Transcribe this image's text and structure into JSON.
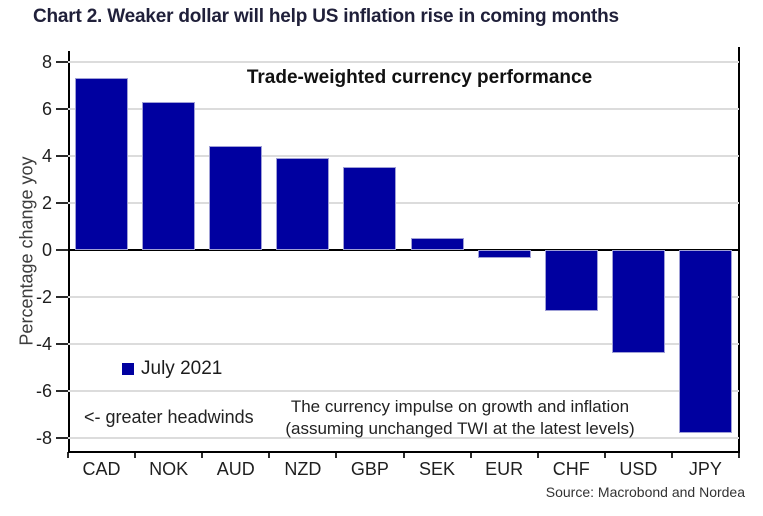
{
  "page": {
    "title": "Chart 2. Weaker dollar will help US inflation rise in coming months"
  },
  "source": "Source: Macrobond and Nordea",
  "chart_data": {
    "type": "bar",
    "title": "Trade-weighted currency performance",
    "categories": [
      "CAD",
      "NOK",
      "AUD",
      "NZD",
      "GBP",
      "SEK",
      "EUR",
      "CHF",
      "USD",
      "JPY"
    ],
    "values": [
      7.3,
      6.3,
      4.4,
      3.9,
      3.5,
      0.5,
      -0.35,
      -2.6,
      -4.4,
      -7.8
    ],
    "series": [
      {
        "name": "July 2021",
        "values": [
          7.3,
          6.3,
          4.4,
          3.9,
          3.5,
          0.5,
          -0.35,
          -2.6,
          -4.4,
          -7.8
        ]
      }
    ],
    "xlabel": "",
    "ylabel": "Percentage change yoy",
    "ylim": [
      -8.6,
      8.45
    ],
    "y_ticks": [
      8,
      6,
      4,
      2,
      0,
      -2,
      -4,
      -6,
      -8
    ],
    "grid": true,
    "legend": {
      "label": "July 2021",
      "position": "inside-lower-left"
    },
    "annotations": [
      "<- greater headwinds",
      "The currency impulse on growth and inflation\n(assuming unchanged TWI at the latest levels)"
    ],
    "colors": {
      "bar": "#0000A0",
      "bar_border": "#9f9fd6",
      "gridline": "#dcdcdc",
      "axis": "#000000"
    }
  }
}
